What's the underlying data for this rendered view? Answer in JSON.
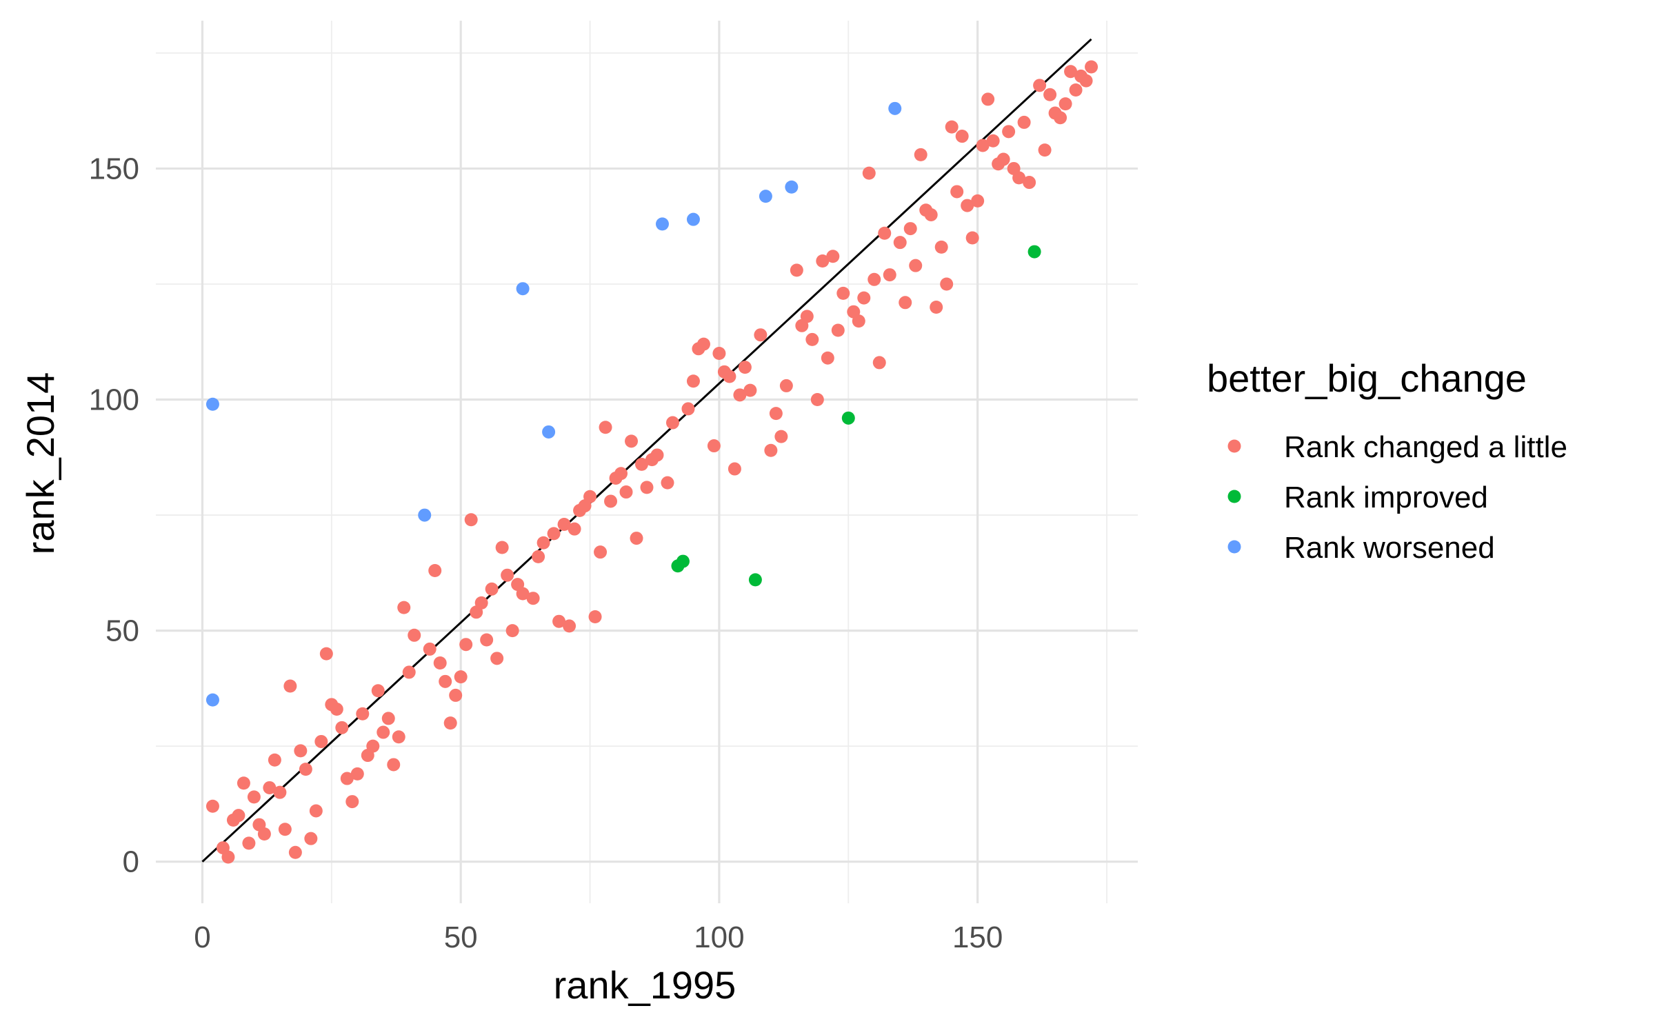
{
  "chart_data": {
    "type": "scatter",
    "title": "",
    "xlabel": "rank_1995",
    "ylabel": "rank_2014",
    "xlim": [
      -9,
      181
    ],
    "ylim": [
      -9,
      182
    ],
    "x_ticks": [
      0,
      50,
      100,
      150
    ],
    "y_ticks": [
      0,
      50,
      100,
      150
    ],
    "x_tick_labels": [
      "0",
      "50",
      "100",
      "150"
    ],
    "y_tick_labels": [
      "0",
      "50",
      "100",
      "150"
    ],
    "grid": true,
    "legend": {
      "title": "better_big_change",
      "position": "right"
    },
    "reference_line": {
      "from": [
        0,
        0
      ],
      "to": [
        172,
        178
      ],
      "color": "#000000"
    },
    "series": [
      {
        "name": "Rank changed a little",
        "color": "#F8766D",
        "points": [
          [
            2,
            12
          ],
          [
            4,
            3
          ],
          [
            5,
            1
          ],
          [
            6,
            9
          ],
          [
            7,
            10
          ],
          [
            8,
            17
          ],
          [
            9,
            4
          ],
          [
            10,
            14
          ],
          [
            11,
            8
          ],
          [
            12,
            6
          ],
          [
            13,
            16
          ],
          [
            14,
            22
          ],
          [
            15,
            15
          ],
          [
            16,
            7
          ],
          [
            17,
            38
          ],
          [
            18,
            2
          ],
          [
            19,
            24
          ],
          [
            20,
            20
          ],
          [
            21,
            5
          ],
          [
            22,
            11
          ],
          [
            23,
            26
          ],
          [
            24,
            45
          ],
          [
            25,
            34
          ],
          [
            26,
            33
          ],
          [
            27,
            29
          ],
          [
            28,
            18
          ],
          [
            29,
            13
          ],
          [
            30,
            19
          ],
          [
            31,
            32
          ],
          [
            32,
            23
          ],
          [
            33,
            25
          ],
          [
            34,
            37
          ],
          [
            35,
            28
          ],
          [
            36,
            31
          ],
          [
            37,
            21
          ],
          [
            38,
            27
          ],
          [
            39,
            55
          ],
          [
            40,
            41
          ],
          [
            41,
            49
          ],
          [
            44,
            46
          ],
          [
            45,
            63
          ],
          [
            46,
            43
          ],
          [
            47,
            39
          ],
          [
            48,
            30
          ],
          [
            49,
            36
          ],
          [
            50,
            40
          ],
          [
            51,
            47
          ],
          [
            52,
            74
          ],
          [
            53,
            54
          ],
          [
            54,
            56
          ],
          [
            55,
            48
          ],
          [
            56,
            59
          ],
          [
            57,
            44
          ],
          [
            58,
            68
          ],
          [
            59,
            62
          ],
          [
            60,
            50
          ],
          [
            61,
            60
          ],
          [
            62,
            58
          ],
          [
            64,
            57
          ],
          [
            65,
            66
          ],
          [
            66,
            69
          ],
          [
            68,
            71
          ],
          [
            69,
            52
          ],
          [
            70,
            73
          ],
          [
            71,
            51
          ],
          [
            72,
            72
          ],
          [
            73,
            76
          ],
          [
            74,
            77
          ],
          [
            75,
            79
          ],
          [
            76,
            53
          ],
          [
            77,
            67
          ],
          [
            78,
            94
          ],
          [
            79,
            78
          ],
          [
            80,
            83
          ],
          [
            81,
            84
          ],
          [
            82,
            80
          ],
          [
            83,
            91
          ],
          [
            84,
            70
          ],
          [
            85,
            86
          ],
          [
            86,
            81
          ],
          [
            87,
            87
          ],
          [
            88,
            88
          ],
          [
            90,
            82
          ],
          [
            91,
            95
          ],
          [
            94,
            98
          ],
          [
            95,
            104
          ],
          [
            96,
            111
          ],
          [
            97,
            112
          ],
          [
            99,
            90
          ],
          [
            100,
            110
          ],
          [
            101,
            106
          ],
          [
            102,
            105
          ],
          [
            103,
            85
          ],
          [
            104,
            101
          ],
          [
            105,
            107
          ],
          [
            106,
            102
          ],
          [
            108,
            114
          ],
          [
            110,
            89
          ],
          [
            111,
            97
          ],
          [
            112,
            92
          ],
          [
            113,
            103
          ],
          [
            115,
            128
          ],
          [
            116,
            116
          ],
          [
            117,
            118
          ],
          [
            118,
            113
          ],
          [
            119,
            100
          ],
          [
            120,
            130
          ],
          [
            121,
            109
          ],
          [
            122,
            131
          ],
          [
            123,
            115
          ],
          [
            124,
            123
          ],
          [
            126,
            119
          ],
          [
            127,
            117
          ],
          [
            128,
            122
          ],
          [
            129,
            149
          ],
          [
            130,
            126
          ],
          [
            131,
            108
          ],
          [
            132,
            136
          ],
          [
            133,
            127
          ],
          [
            135,
            134
          ],
          [
            136,
            121
          ],
          [
            137,
            137
          ],
          [
            138,
            129
          ],
          [
            139,
            153
          ],
          [
            140,
            141
          ],
          [
            141,
            140
          ],
          [
            142,
            120
          ],
          [
            143,
            133
          ],
          [
            144,
            125
          ],
          [
            145,
            159
          ],
          [
            146,
            145
          ],
          [
            147,
            157
          ],
          [
            148,
            142
          ],
          [
            149,
            135
          ],
          [
            150,
            143
          ],
          [
            151,
            155
          ],
          [
            152,
            165
          ],
          [
            153,
            156
          ],
          [
            154,
            151
          ],
          [
            155,
            152
          ],
          [
            156,
            158
          ],
          [
            157,
            150
          ],
          [
            158,
            148
          ],
          [
            159,
            160
          ],
          [
            160,
            147
          ],
          [
            162,
            168
          ],
          [
            163,
            154
          ],
          [
            164,
            166
          ],
          [
            165,
            162
          ],
          [
            166,
            161
          ],
          [
            167,
            164
          ],
          [
            168,
            171
          ],
          [
            169,
            167
          ],
          [
            170,
            170
          ],
          [
            171,
            169
          ],
          [
            172,
            172
          ]
        ]
      },
      {
        "name": "Rank improved",
        "color": "#00BA38",
        "points": [
          [
            92,
            64
          ],
          [
            93,
            65
          ],
          [
            107,
            61
          ],
          [
            125,
            96
          ],
          [
            161,
            132
          ]
        ]
      },
      {
        "name": "Rank worsened",
        "color": "#619CFF",
        "points": [
          [
            2,
            99
          ],
          [
            2,
            35
          ],
          [
            43,
            75
          ],
          [
            62,
            124
          ],
          [
            67,
            93
          ],
          [
            89,
            138
          ],
          [
            95,
            139
          ],
          [
            109,
            144
          ],
          [
            114,
            146
          ],
          [
            134,
            163
          ]
        ]
      }
    ]
  }
}
